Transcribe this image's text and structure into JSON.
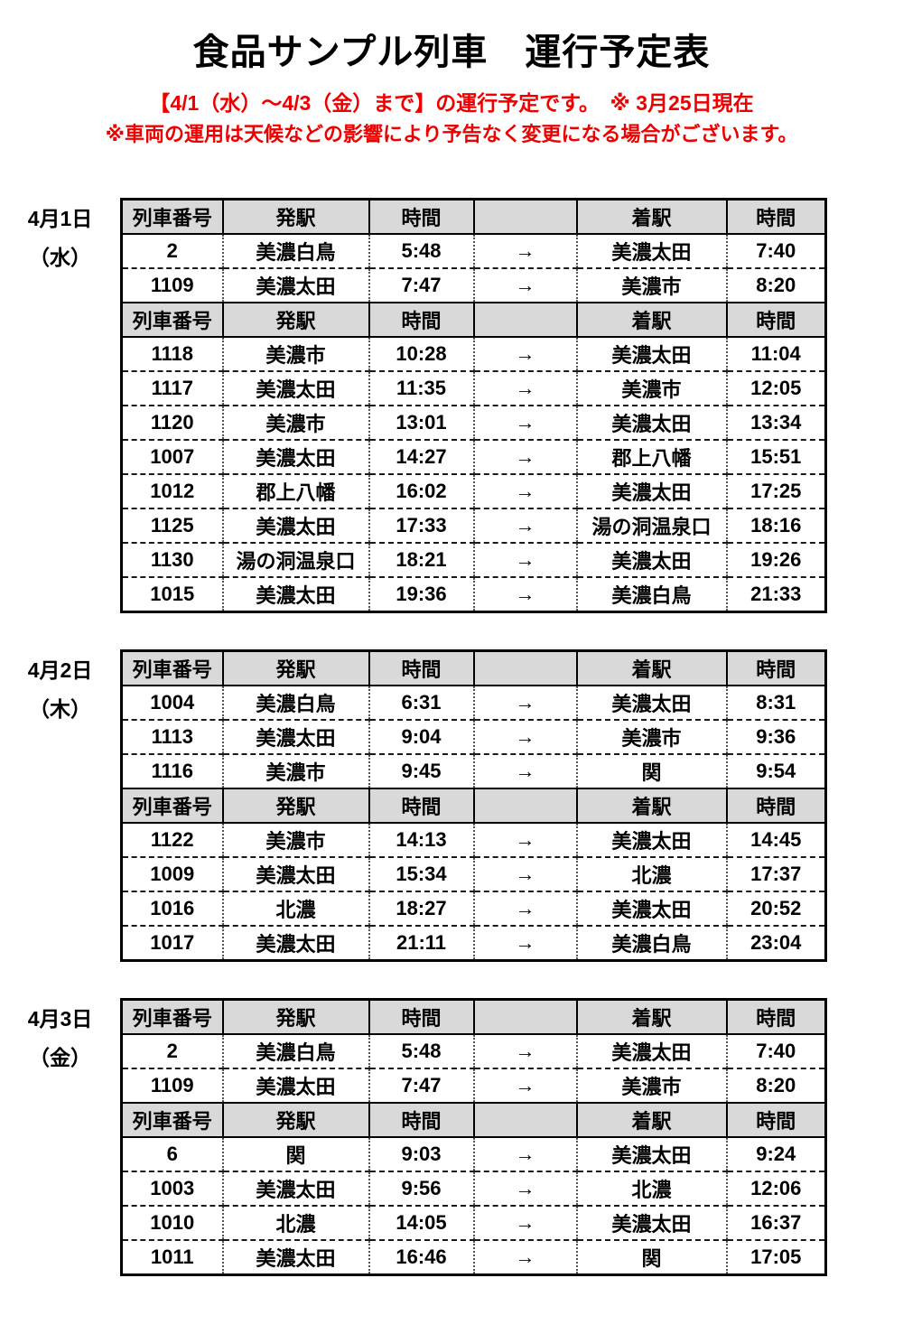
{
  "page": {
    "title": "食品サンプル列車　運行予定表",
    "notice_line1": "【4/1（水）～4/3（金）まで】の運行予定です。　※ 3月25日現在",
    "notice_line2": "※車両の運用は天候などの影響により予告なく変更になる場合がございます。"
  },
  "colors": {
    "notice_red": "#ee0000",
    "header_bg": "#d9d9d9",
    "table_border": "#000000"
  },
  "table": {
    "columns": [
      "列車番号",
      "発駅",
      "時間",
      "",
      "着駅",
      "時間"
    ],
    "arrow": "→"
  },
  "days": [
    {
      "date": "4月1日",
      "weekday": "（水）",
      "blocks": [
        {
          "rows": [
            [
              "2",
              "美濃白鳥",
              "5:48",
              "→",
              "美濃太田",
              "7:40"
            ],
            [
              "1109",
              "美濃太田",
              "7:47",
              "→",
              "美濃市",
              "8:20"
            ]
          ]
        },
        {
          "rows": [
            [
              "1118",
              "美濃市",
              "10:28",
              "→",
              "美濃太田",
              "11:04"
            ],
            [
              "1117",
              "美濃太田",
              "11:35",
              "→",
              "美濃市",
              "12:05"
            ],
            [
              "1120",
              "美濃市",
              "13:01",
              "→",
              "美濃太田",
              "13:34"
            ],
            [
              "1007",
              "美濃太田",
              "14:27",
              "→",
              "郡上八幡",
              "15:51"
            ],
            [
              "1012",
              "郡上八幡",
              "16:02",
              "→",
              "美濃太田",
              "17:25"
            ],
            [
              "1125",
              "美濃太田",
              "17:33",
              "→",
              "湯の洞温泉口",
              "18:16"
            ],
            [
              "1130",
              "湯の洞温泉口",
              "18:21",
              "→",
              "美濃太田",
              "19:26"
            ],
            [
              "1015",
              "美濃太田",
              "19:36",
              "→",
              "美濃白鳥",
              "21:33"
            ]
          ]
        }
      ]
    },
    {
      "date": "4月2日",
      "weekday": "（木）",
      "blocks": [
        {
          "rows": [
            [
              "1004",
              "美濃白鳥",
              "6:31",
              "→",
              "美濃太田",
              "8:31"
            ],
            [
              "1113",
              "美濃太田",
              "9:04",
              "→",
              "美濃市",
              "9:36"
            ],
            [
              "1116",
              "美濃市",
              "9:45",
              "→",
              "関",
              "9:54"
            ]
          ]
        },
        {
          "rows": [
            [
              "1122",
              "美濃市",
              "14:13",
              "→",
              "美濃太田",
              "14:45"
            ],
            [
              "1009",
              "美濃太田",
              "15:34",
              "→",
              "北濃",
              "17:37"
            ],
            [
              "1016",
              "北濃",
              "18:27",
              "→",
              "美濃太田",
              "20:52"
            ],
            [
              "1017",
              "美濃太田",
              "21:11",
              "→",
              "美濃白鳥",
              "23:04"
            ]
          ]
        }
      ]
    },
    {
      "date": "4月3日",
      "weekday": "（金）",
      "blocks": [
        {
          "rows": [
            [
              "2",
              "美濃白鳥",
              "5:48",
              "→",
              "美濃太田",
              "7:40"
            ],
            [
              "1109",
              "美濃太田",
              "7:47",
              "→",
              "美濃市",
              "8:20"
            ]
          ]
        },
        {
          "rows": [
            [
              "6",
              "関",
              "9:03",
              "→",
              "美濃太田",
              "9:24"
            ],
            [
              "1003",
              "美濃太田",
              "9:56",
              "→",
              "北濃",
              "12:06"
            ],
            [
              "1010",
              "北濃",
              "14:05",
              "→",
              "美濃太田",
              "16:37"
            ],
            [
              "1011",
              "美濃太田",
              "16:46",
              "→",
              "関",
              "17:05"
            ]
          ]
        }
      ]
    }
  ]
}
